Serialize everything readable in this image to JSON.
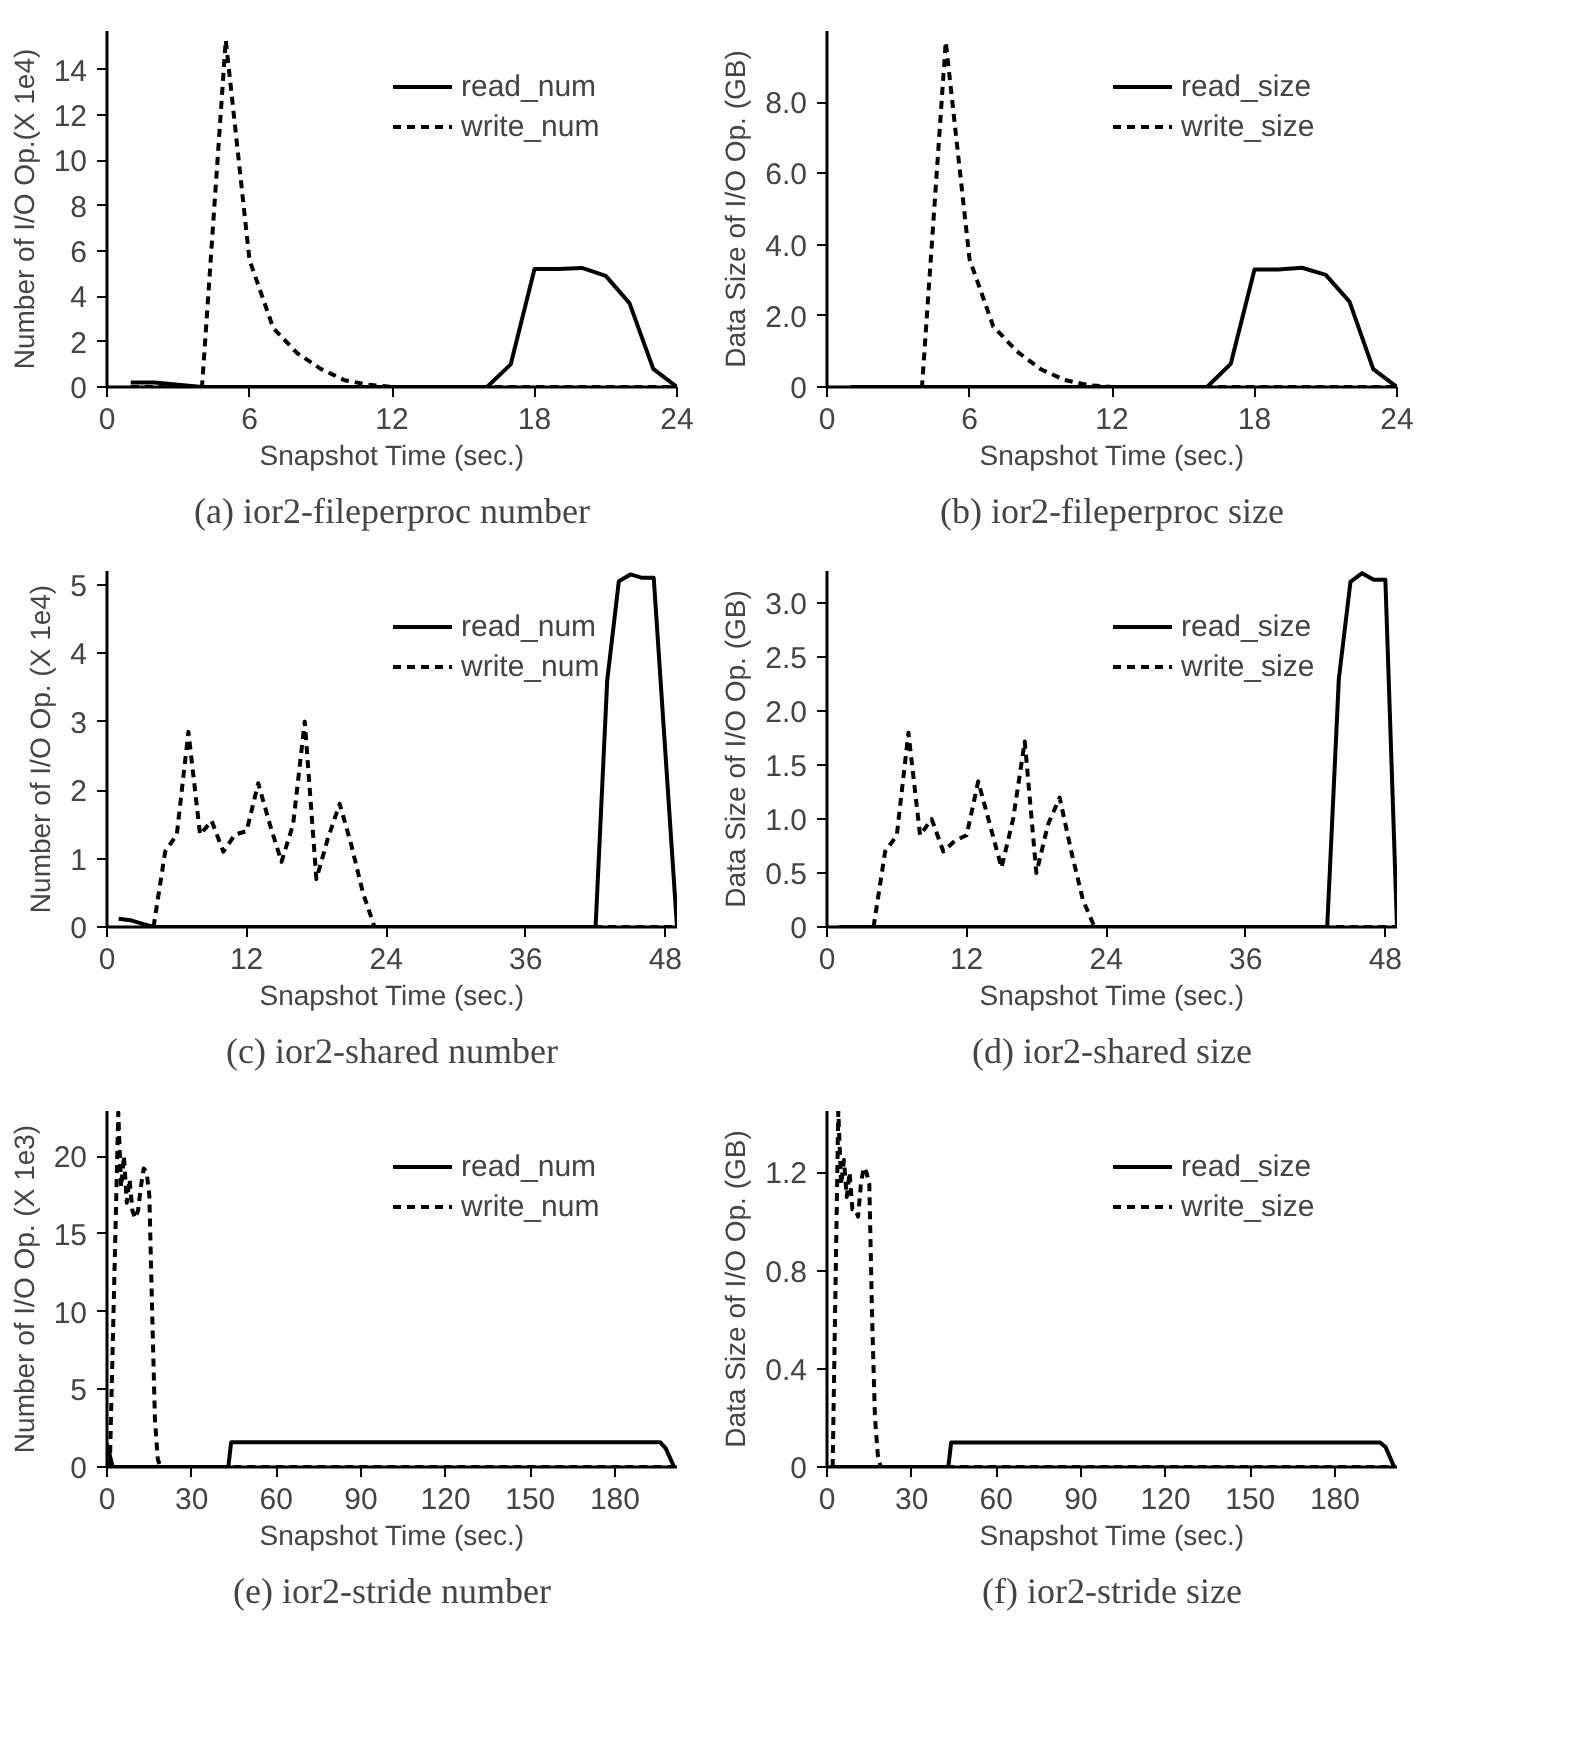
{
  "chart_data": [
    {
      "type": "line",
      "title": "(a) ior2-fileperproc number",
      "xlabel": "Snapshot Time (sec.)",
      "ylabel": "Number of I/O Op.(X 1e4)",
      "xlim": [
        0,
        24
      ],
      "xticks": [
        0,
        6,
        12,
        18,
        24
      ],
      "ylim": [
        0,
        15.7
      ],
      "yticks": [
        0,
        2,
        4,
        6,
        8,
        10,
        12,
        14
      ],
      "grid": false,
      "legend": "top right",
      "series": [
        {
          "name": "read_num",
          "color": "#000000",
          "line_style": "solid",
          "x": [
            1,
            2,
            3,
            4,
            16,
            17,
            18,
            19,
            20,
            21,
            22,
            23,
            24
          ],
          "values": [
            0.2,
            0.2,
            0.1,
            0,
            0,
            1.0,
            5.2,
            5.2,
            5.25,
            4.9,
            3.7,
            0.8,
            0
          ]
        },
        {
          "name": "write_num",
          "color": "#000000",
          "line_style": "dashed",
          "x": [
            1,
            4,
            5,
            6,
            7,
            8,
            9,
            10,
            11,
            12,
            24
          ],
          "values": [
            0,
            0,
            15.3,
            5.6,
            2.6,
            1.5,
            0.8,
            0.3,
            0.1,
            0,
            0
          ]
        }
      ]
    },
    {
      "type": "line",
      "title": "(b) ior2-fileperproc size",
      "xlabel": "Snapshot Time (sec.)",
      "ylabel": "Data Size of I/O Op. (GB)",
      "xlim": [
        0,
        24
      ],
      "xticks": [
        0,
        6,
        12,
        18,
        24
      ],
      "ylim": [
        0,
        10.0
      ],
      "yticks": [
        0,
        {
          "value": 2,
          "label": "2.0"
        },
        {
          "value": 4,
          "label": "4.0"
        },
        {
          "value": 6,
          "label": "6.0"
        },
        {
          "value": 8,
          "label": "8.0"
        }
      ],
      "grid": false,
      "legend": "top right",
      "series": [
        {
          "name": "read_size",
          "color": "#000000",
          "line_style": "solid",
          "x": [
            1,
            16,
            17,
            18,
            19,
            20,
            21,
            22,
            23,
            24
          ],
          "values": [
            0,
            0,
            0.65,
            3.3,
            3.3,
            3.35,
            3.15,
            2.4,
            0.5,
            0
          ]
        },
        {
          "name": "write_size",
          "color": "#000000",
          "line_style": "dashed",
          "x": [
            1,
            4,
            5,
            6,
            7,
            8,
            9,
            10,
            11,
            12,
            24
          ],
          "values": [
            0,
            0,
            9.7,
            3.6,
            1.7,
            1.0,
            0.5,
            0.2,
            0.05,
            0,
            0
          ]
        }
      ]
    },
    {
      "type": "line",
      "title": "(c) ior2-shared number",
      "xlabel": "Snapshot Time (sec.)",
      "ylabel": "Number of I/O Op. (X 1e4)",
      "xlim": [
        0,
        49
      ],
      "xticks": [
        0,
        12,
        24,
        36,
        48
      ],
      "ylim": [
        0,
        5.2
      ],
      "yticks": [
        0,
        1,
        2,
        3,
        4,
        5
      ],
      "grid": false,
      "legend": "top right",
      "series": [
        {
          "name": "read_num",
          "color": "#000000",
          "line_style": "solid",
          "x": [
            1,
            2,
            3,
            4,
            42,
            43,
            44,
            45,
            46,
            47,
            49
          ],
          "values": [
            0.12,
            0.1,
            0.05,
            0,
            0,
            3.6,
            5.05,
            5.15,
            5.1,
            5.1,
            0
          ]
        },
        {
          "name": "write_num",
          "color": "#000000",
          "line_style": "dashed",
          "x": [
            4,
            5,
            6,
            7,
            8,
            9,
            10,
            11,
            12,
            13,
            14,
            15,
            16,
            17,
            18,
            19,
            20,
            21,
            22,
            23,
            49
          ],
          "values": [
            0,
            1.1,
            1.35,
            2.85,
            1.35,
            1.55,
            1.1,
            1.35,
            1.4,
            2.1,
            1.5,
            0.95,
            1.5,
            3.0,
            0.7,
            1.3,
            1.8,
            1.2,
            0.5,
            0,
            0
          ]
        }
      ]
    },
    {
      "type": "line",
      "title": "(d) ior2-shared size",
      "xlabel": "Snapshot Time (sec.)",
      "ylabel": "Data Size of I/O Op. (GB)",
      "xlim": [
        0,
        49
      ],
      "xticks": [
        0,
        12,
        24,
        36,
        48
      ],
      "ylim": [
        0,
        3.3
      ],
      "yticks": [
        0,
        {
          "value": 0.5,
          "label": "0.5"
        },
        {
          "value": 1,
          "label": "1.0"
        },
        {
          "value": 1.5,
          "label": "1.5"
        },
        {
          "value": 2,
          "label": "2.0"
        },
        {
          "value": 2.5,
          "label": "2.5"
        },
        {
          "value": 3,
          "label": "3.0"
        }
      ],
      "grid": false,
      "legend": "top right",
      "series": [
        {
          "name": "read_size",
          "color": "#000000",
          "line_style": "solid",
          "x": [
            1,
            43,
            44,
            45,
            46,
            47,
            48,
            49
          ],
          "values": [
            0,
            0,
            2.3,
            3.2,
            3.28,
            3.22,
            3.22,
            0
          ]
        },
        {
          "name": "write_size",
          "color": "#000000",
          "line_style": "dashed",
          "x": [
            4,
            5,
            6,
            7,
            8,
            9,
            10,
            11,
            12,
            13,
            14,
            15,
            16,
            17,
            18,
            19,
            20,
            21,
            22,
            23,
            49
          ],
          "values": [
            0,
            0.7,
            0.85,
            1.8,
            0.85,
            1.0,
            0.7,
            0.8,
            0.85,
            1.35,
            0.95,
            0.55,
            1.0,
            1.72,
            0.5,
            0.95,
            1.2,
            0.7,
            0.25,
            0,
            0
          ]
        }
      ]
    },
    {
      "type": "line",
      "title": "(e) ior2-stride number",
      "xlabel": "Snapshot Time (sec.)",
      "ylabel": "Number of I/O Op. (X 1e3)",
      "xlim": [
        0,
        202
      ],
      "xticks": [
        0,
        30,
        60,
        90,
        120,
        150,
        180
      ],
      "ylim": [
        0,
        22.9
      ],
      "yticks": [
        0,
        5,
        10,
        15,
        20
      ],
      "grid": false,
      "legend": "top right",
      "series": [
        {
          "name": "read_num",
          "color": "#000000",
          "line_style": "solid",
          "x": [
            0,
            2,
            43,
            44,
            196,
            198,
            201
          ],
          "values": [
            1.5,
            0,
            0,
            1.6,
            1.6,
            1.2,
            0
          ]
        },
        {
          "name": "write_num",
          "color": "#000000",
          "line_style": "dashed",
          "x": [
            1,
            4,
            5,
            6,
            7,
            8,
            9,
            10,
            11,
            12,
            13,
            14,
            15,
            16,
            17,
            18,
            19,
            201
          ],
          "values": [
            0,
            22.8,
            18,
            20,
            17,
            18.5,
            16.5,
            16,
            16.5,
            18,
            19.2,
            19,
            17.5,
            10,
            3,
            0.5,
            0,
            0
          ]
        }
      ]
    },
    {
      "type": "line",
      "title": "(f) ior2-stride size",
      "xlabel": "Snapshot Time (sec.)",
      "ylabel": "Data Size of I/O Op. (GB)",
      "xlim": [
        0,
        202
      ],
      "xticks": [
        0,
        30,
        60,
        90,
        120,
        150,
        180
      ],
      "ylim": [
        0,
        1.45
      ],
      "yticks": [
        0,
        {
          "value": 0.4,
          "label": "0.4"
        },
        {
          "value": 0.8,
          "label": "0.8"
        },
        {
          "value": 1.2,
          "label": "1.2"
        }
      ],
      "grid": false,
      "legend": "top right",
      "series": [
        {
          "name": "read_size",
          "color": "#000000",
          "line_style": "solid",
          "x": [
            1,
            43,
            44,
            196,
            198,
            201
          ],
          "values": [
            0,
            0,
            0.1,
            0.1,
            0.08,
            0
          ]
        },
        {
          "name": "write_size",
          "color": "#000000",
          "line_style": "dashed",
          "x": [
            2,
            4,
            5,
            6,
            7,
            8,
            9,
            10,
            11,
            12,
            13,
            14,
            15,
            16,
            17,
            18,
            19,
            201
          ],
          "values": [
            0,
            1.45,
            1.15,
            1.25,
            1.1,
            1.2,
            1.05,
            1.05,
            1.02,
            1.15,
            1.22,
            1.2,
            1.15,
            0.6,
            0.2,
            0.05,
            0,
            0
          ]
        }
      ]
    }
  ]
}
